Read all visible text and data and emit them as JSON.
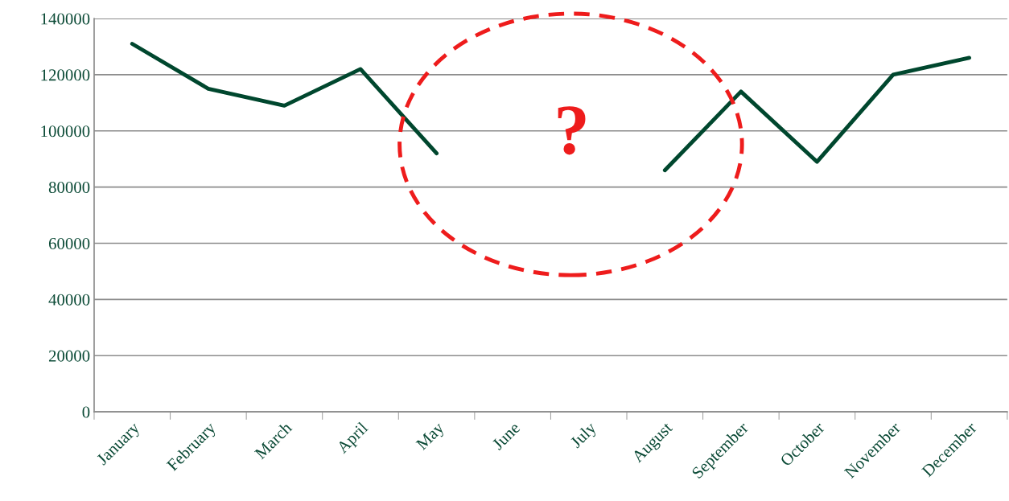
{
  "chart_data": {
    "type": "line",
    "categories": [
      "January",
      "February",
      "March",
      "April",
      "May",
      "June",
      "July",
      "August",
      "September",
      "October",
      "November",
      "December"
    ],
    "series": [
      {
        "color": "#00472e",
        "values": [
          131000,
          115000,
          109000,
          122000,
          92000,
          null,
          null,
          86000,
          114000,
          89000,
          120000,
          126000
        ]
      }
    ],
    "ylim": [
      0,
      140000
    ],
    "yticks": [
      0,
      20000,
      40000,
      60000,
      80000,
      100000,
      120000,
      140000
    ],
    "grid": "y",
    "marker": "none",
    "line_style": "solid",
    "annotations": [
      "?"
    ]
  }
}
